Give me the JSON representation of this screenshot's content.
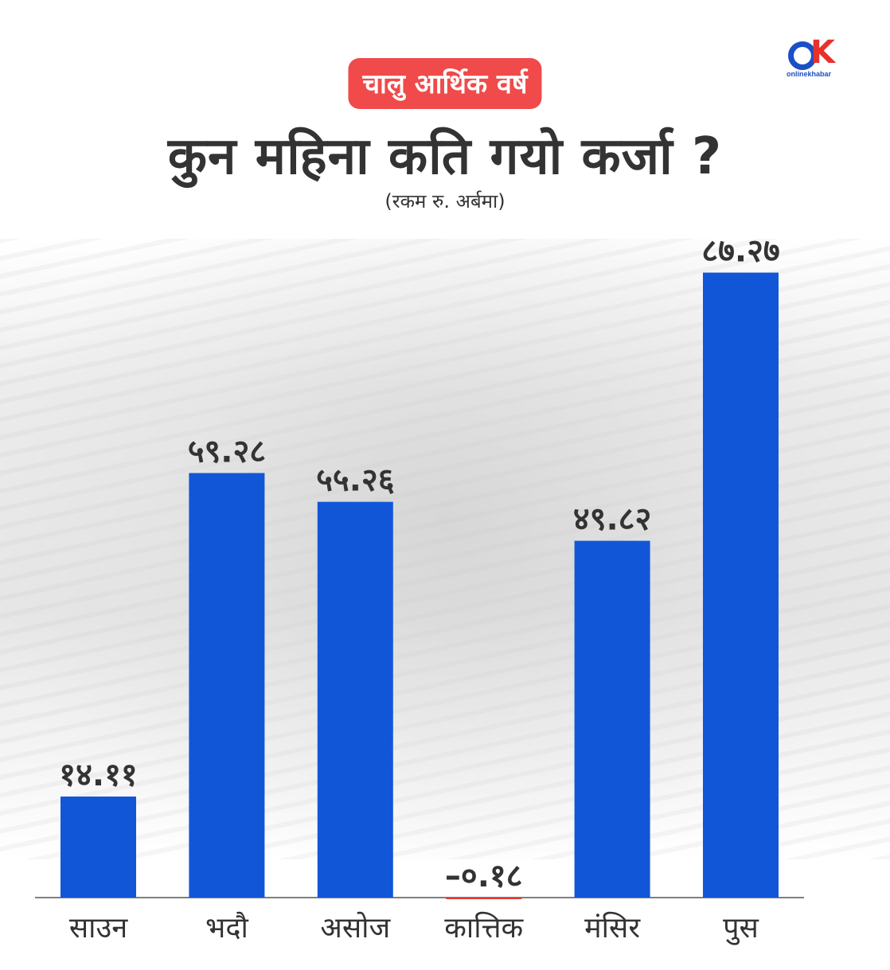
{
  "header": {
    "badge": "चालु आर्थिक वर्ष",
    "title": "कुन महिना कति गयो कर्जा ?",
    "subtitle": "(रकम रु. अर्बमा)"
  },
  "logo": {
    "text": "onlinekhabar",
    "icon": "ok-logo-icon"
  },
  "colors": {
    "bar": "#1256d8",
    "negative": "#e53935",
    "badge": "#f04a4a",
    "text": "#333333"
  },
  "chart_data": {
    "type": "bar",
    "title": "कुन महिना कति गयो कर्जा ?",
    "categories": [
      "साउन",
      "भदौ",
      "असोज",
      "कात्तिक",
      "मंसिर",
      "पुस"
    ],
    "values": [
      14.11,
      59.28,
      55.26,
      -0.18,
      49.82,
      87.27
    ],
    "value_labels": [
      "१४.११",
      "५९.२८",
      "५५.२६",
      "–०.१८",
      "४९.८२",
      "८७.२७"
    ],
    "ylim": [
      0,
      100
    ],
    "grid": false,
    "legend": "none"
  }
}
